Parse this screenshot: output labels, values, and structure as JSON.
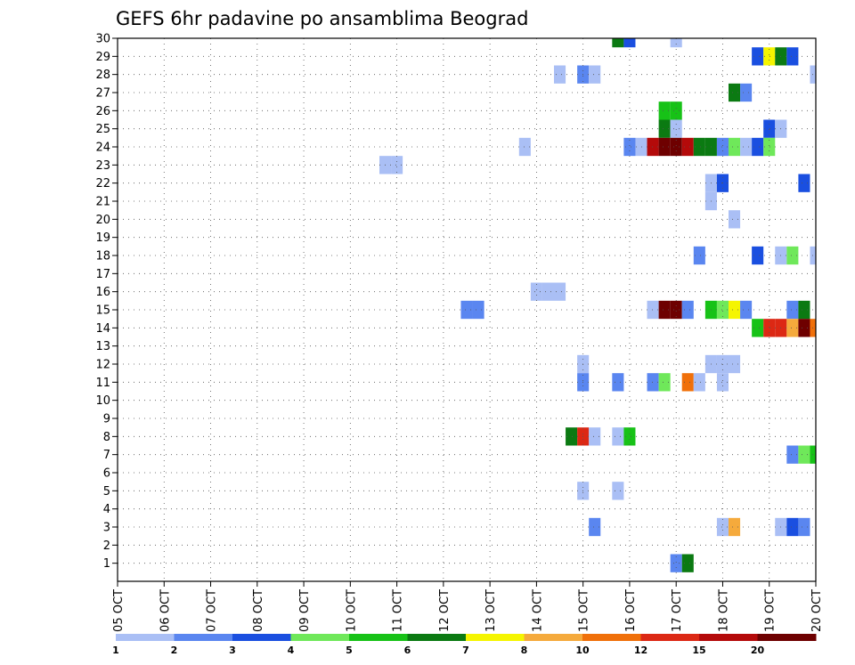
{
  "chart_data": {
    "type": "heatmap",
    "title": "GEFS 6hr padavine po ansamblima Beograd",
    "xlabel": "",
    "ylabel": "",
    "x_ticks": [
      "05 OCT",
      "06 OCT",
      "07 OCT",
      "08 OCT",
      "09 OCT",
      "10 OCT",
      "11 OCT",
      "12 OCT",
      "13 OCT",
      "14 OCT",
      "15 OCT",
      "16 OCT",
      "17 OCT",
      "18 OCT",
      "19 OCT",
      "20 OCT"
    ],
    "y_ticks": [
      "1",
      "2",
      "3",
      "4",
      "5",
      "6",
      "7",
      "8",
      "9",
      "10",
      "11",
      "12",
      "13",
      "14",
      "15",
      "16",
      "17",
      "18",
      "19",
      "20",
      "21",
      "22",
      "23",
      "24",
      "25",
      "26",
      "27",
      "28",
      "29",
      "30"
    ],
    "y_range": [
      0,
      30
    ],
    "time_steps_per_day": 4,
    "n_steps": 60,
    "grid": true,
    "legend": {
      "position": "bottom",
      "labels": [
        "1",
        "2",
        "3",
        "4",
        "5",
        "6",
        "7",
        "8",
        "10",
        "12",
        "15",
        "20"
      ],
      "colors": [
        "#aabff5",
        "#5a86f0",
        "#1a4fe0",
        "#6fe85a",
        "#17c217",
        "#0b7a12",
        "#f5f500",
        "#f5aa3c",
        "#f0700a",
        "#dc2814",
        "#b40a0a",
        "#6e0000"
      ]
    },
    "member_rows": [
      0,
      1,
      2,
      3,
      4,
      5,
      6,
      7,
      8,
      9,
      10,
      11,
      12,
      13,
      14,
      15,
      16,
      17,
      18,
      19,
      20,
      21,
      22,
      23,
      24,
      25,
      26,
      27,
      28,
      29,
      30
    ],
    "cells": [
      {
        "m": 30,
        "s": 43,
        "c": 5
      },
      {
        "m": 30,
        "s": 44,
        "c": 2
      },
      {
        "m": 30,
        "s": 48,
        "c": 0
      },
      {
        "m": 29,
        "s": 55,
        "c": 2
      },
      {
        "m": 29,
        "s": 56,
        "c": 6
      },
      {
        "m": 29,
        "s": 57,
        "c": 5
      },
      {
        "m": 29,
        "s": 58,
        "c": 2
      },
      {
        "m": 28,
        "s": 38,
        "c": 0
      },
      {
        "m": 28,
        "s": 40,
        "c": 1
      },
      {
        "m": 28,
        "s": 41,
        "c": 0
      },
      {
        "m": 28,
        "s": 60,
        "c": 0
      },
      {
        "m": 27,
        "s": 53,
        "c": 5
      },
      {
        "m": 27,
        "s": 54,
        "c": 1
      },
      {
        "m": 26,
        "s": 47,
        "c": 4
      },
      {
        "m": 26,
        "s": 48,
        "c": 4
      },
      {
        "m": 25,
        "s": 47,
        "c": 5
      },
      {
        "m": 25,
        "s": 48,
        "c": 0
      },
      {
        "m": 25,
        "s": 56,
        "c": 2
      },
      {
        "m": 25,
        "s": 57,
        "c": 0
      },
      {
        "m": 24,
        "s": 35,
        "c": 0
      },
      {
        "m": 24,
        "s": 44,
        "c": 1
      },
      {
        "m": 24,
        "s": 45,
        "c": 0
      },
      {
        "m": 24,
        "s": 46,
        "c": 10
      },
      {
        "m": 24,
        "s": 47,
        "c": 11
      },
      {
        "m": 24,
        "s": 48,
        "c": 11
      },
      {
        "m": 24,
        "s": 49,
        "c": 10
      },
      {
        "m": 24,
        "s": 50,
        "c": 5
      },
      {
        "m": 24,
        "s": 51,
        "c": 5
      },
      {
        "m": 24,
        "s": 52,
        "c": 1
      },
      {
        "m": 24,
        "s": 53,
        "c": 3
      },
      {
        "m": 24,
        "s": 54,
        "c": 0
      },
      {
        "m": 24,
        "s": 55,
        "c": 2
      },
      {
        "m": 24,
        "s": 56,
        "c": 3
      },
      {
        "m": 23,
        "s": 23,
        "c": 0
      },
      {
        "m": 23,
        "s": 24,
        "c": 0
      },
      {
        "m": 22,
        "s": 51,
        "c": 0
      },
      {
        "m": 22,
        "s": 52,
        "c": 2
      },
      {
        "m": 22,
        "s": 59,
        "c": 2
      },
      {
        "m": 21,
        "s": 51,
        "c": 0
      },
      {
        "m": 20,
        "s": 53,
        "c": 0
      },
      {
        "m": 18,
        "s": 50,
        "c": 1
      },
      {
        "m": 18,
        "s": 55,
        "c": 2
      },
      {
        "m": 18,
        "s": 57,
        "c": 0
      },
      {
        "m": 18,
        "s": 58,
        "c": 3
      },
      {
        "m": 18,
        "s": 60,
        "c": 0
      },
      {
        "m": 16,
        "s": 36,
        "c": 0
      },
      {
        "m": 16,
        "s": 37,
        "c": 0
      },
      {
        "m": 16,
        "s": 38,
        "c": 0
      },
      {
        "m": 15,
        "s": 30,
        "c": 1
      },
      {
        "m": 15,
        "s": 31,
        "c": 1
      },
      {
        "m": 15,
        "s": 46,
        "c": 0
      },
      {
        "m": 15,
        "s": 47,
        "c": 11
      },
      {
        "m": 15,
        "s": 48,
        "c": 11
      },
      {
        "m": 15,
        "s": 49,
        "c": 1
      },
      {
        "m": 15,
        "s": 51,
        "c": 4
      },
      {
        "m": 15,
        "s": 52,
        "c": 3
      },
      {
        "m": 15,
        "s": 53,
        "c": 6
      },
      {
        "m": 15,
        "s": 54,
        "c": 1
      },
      {
        "m": 15,
        "s": 58,
        "c": 1
      },
      {
        "m": 15,
        "s": 59,
        "c": 5
      },
      {
        "m": 14,
        "s": 55,
        "c": 4
      },
      {
        "m": 14,
        "s": 56,
        "c": 9
      },
      {
        "m": 14,
        "s": 57,
        "c": 9
      },
      {
        "m": 14,
        "s": 58,
        "c": 7
      },
      {
        "m": 14,
        "s": 59,
        "c": 11
      },
      {
        "m": 14,
        "s": 60,
        "c": 8
      },
      {
        "m": 12,
        "s": 40,
        "c": 0
      },
      {
        "m": 12,
        "s": 51,
        "c": 0
      },
      {
        "m": 12,
        "s": 52,
        "c": 0
      },
      {
        "m": 12,
        "s": 53,
        "c": 0
      },
      {
        "m": 11,
        "s": 40,
        "c": 1
      },
      {
        "m": 11,
        "s": 43,
        "c": 1
      },
      {
        "m": 11,
        "s": 46,
        "c": 1
      },
      {
        "m": 11,
        "s": 47,
        "c": 3
      },
      {
        "m": 11,
        "s": 49,
        "c": 8
      },
      {
        "m": 11,
        "s": 50,
        "c": 0
      },
      {
        "m": 11,
        "s": 52,
        "c": 0
      },
      {
        "m": 8,
        "s": 39,
        "c": 5
      },
      {
        "m": 8,
        "s": 40,
        "c": 9
      },
      {
        "m": 8,
        "s": 41,
        "c": 0
      },
      {
        "m": 8,
        "s": 43,
        "c": 0
      },
      {
        "m": 8,
        "s": 44,
        "c": 4
      },
      {
        "m": 7,
        "s": 58,
        "c": 1
      },
      {
        "m": 7,
        "s": 59,
        "c": 3
      },
      {
        "m": 7,
        "s": 60,
        "c": 4
      },
      {
        "m": 5,
        "s": 40,
        "c": 0
      },
      {
        "m": 5,
        "s": 43,
        "c": 0
      },
      {
        "m": 3,
        "s": 41,
        "c": 1
      },
      {
        "m": 3,
        "s": 52,
        "c": 0
      },
      {
        "m": 3,
        "s": 53,
        "c": 7
      },
      {
        "m": 3,
        "s": 57,
        "c": 0
      },
      {
        "m": 3,
        "s": 58,
        "c": 2
      },
      {
        "m": 3,
        "s": 59,
        "c": 1
      },
      {
        "m": 1,
        "s": 48,
        "c": 1
      },
      {
        "m": 1,
        "s": 49,
        "c": 5
      }
    ]
  }
}
